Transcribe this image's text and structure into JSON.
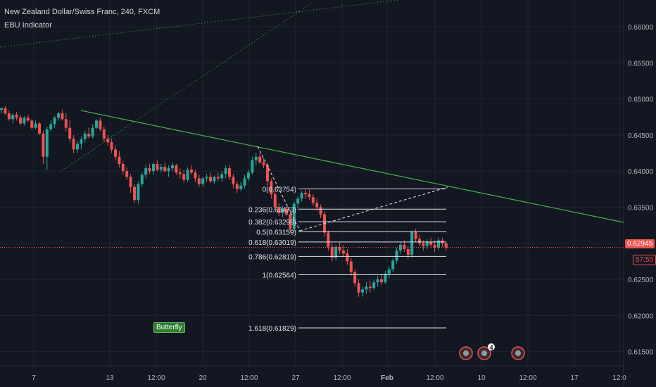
{
  "header": {
    "symbol_title": "New Zealand Dollar/Swiss Franc, 240, FXCM",
    "indicator": "EBU Indicator"
  },
  "price_label": {
    "value": "0.62945",
    "countdown": "57:50",
    "color": "#ef5350"
  },
  "colors": {
    "background": "#131722",
    "grid": "#1f2430",
    "up": "#26a69a",
    "down": "#ef5350",
    "trendline": "#4caf50",
    "fib_line": "#e0e3eb",
    "butterfly_tag": "#2e7d32"
  },
  "chart_data": {
    "type": "candlestick",
    "y_axis": {
      "ticks": [
        "0.66000",
        "0.65500",
        "0.65000",
        "0.64500",
        "0.64000",
        "0.63500",
        "0.63000",
        "0.62500",
        "0.62000",
        "0.61500"
      ],
      "range": [
        0.6125,
        0.6628
      ]
    },
    "x_axis": {
      "ticks": [
        "7",
        "13",
        "12:00",
        "20",
        "12:00",
        "27",
        "12:00",
        "Feb",
        "12:00",
        "10",
        "12:00",
        "17",
        "12:0"
      ]
    },
    "fibonacci": [
      {
        "label": "0(0.63754)",
        "level": 0.63754
      },
      {
        "label": "0.236(0.63473)",
        "level": 0.63473
      },
      {
        "label": "0.382(0.63299)",
        "level": 0.63299
      },
      {
        "label": "0.5(0.63159)",
        "level": 0.63159
      },
      {
        "label": "0.618(0.63019)",
        "level": 0.63019
      },
      {
        "label": "0.786(0.62819)",
        "level": 0.62819
      },
      {
        "label": "1(0.62564)",
        "level": 0.62564
      },
      {
        "label": "1.618(0.61829)",
        "level": 0.61829
      }
    ],
    "pattern_label": "Butterfly",
    "event_badge_count": "4",
    "candles": [
      [
        0.6485,
        0.6488,
        0.648,
        0.6487
      ],
      [
        0.6487,
        0.649,
        0.6478,
        0.648
      ],
      [
        0.648,
        0.6484,
        0.647,
        0.6472
      ],
      [
        0.6472,
        0.648,
        0.6466,
        0.6478
      ],
      [
        0.6478,
        0.6482,
        0.647,
        0.6474
      ],
      [
        0.6474,
        0.6478,
        0.6464,
        0.6466
      ],
      [
        0.6466,
        0.6476,
        0.6463,
        0.6474
      ],
      [
        0.6474,
        0.6478,
        0.6468,
        0.647
      ],
      [
        0.647,
        0.6472,
        0.6458,
        0.646
      ],
      [
        0.646,
        0.647,
        0.6458,
        0.6466
      ],
      [
        0.6466,
        0.6468,
        0.645,
        0.6452
      ],
      [
        0.6452,
        0.6456,
        0.641,
        0.642
      ],
      [
        0.642,
        0.6462,
        0.6402,
        0.6458
      ],
      [
        0.6458,
        0.647,
        0.6455,
        0.6465
      ],
      [
        0.6465,
        0.6476,
        0.646,
        0.6474
      ],
      [
        0.6474,
        0.6482,
        0.647,
        0.648
      ],
      [
        0.648,
        0.6485,
        0.647,
        0.6472
      ],
      [
        0.6472,
        0.648,
        0.6455,
        0.646
      ],
      [
        0.646,
        0.647,
        0.644,
        0.6445
      ],
      [
        0.6445,
        0.645,
        0.6425,
        0.643
      ],
      [
        0.643,
        0.6442,
        0.6425,
        0.6438
      ],
      [
        0.6438,
        0.6448,
        0.643,
        0.6444
      ],
      [
        0.6444,
        0.6456,
        0.644,
        0.6452
      ],
      [
        0.6452,
        0.646,
        0.6445,
        0.6448
      ],
      [
        0.6448,
        0.6465,
        0.6445,
        0.646
      ],
      [
        0.646,
        0.6472,
        0.6458,
        0.647
      ],
      [
        0.647,
        0.6474,
        0.6455,
        0.6458
      ],
      [
        0.6458,
        0.6462,
        0.644,
        0.6445
      ],
      [
        0.6445,
        0.645,
        0.6435,
        0.644
      ],
      [
        0.644,
        0.6445,
        0.6425,
        0.643
      ],
      [
        0.643,
        0.6436,
        0.6415,
        0.642
      ],
      [
        0.642,
        0.6428,
        0.6405,
        0.641
      ],
      [
        0.641,
        0.6414,
        0.6395,
        0.64
      ],
      [
        0.64,
        0.6405,
        0.6388,
        0.6392
      ],
      [
        0.6392,
        0.6396,
        0.637,
        0.6378
      ],
      [
        0.6378,
        0.6382,
        0.6356,
        0.636
      ],
      [
        0.636,
        0.6385,
        0.6355,
        0.6382
      ],
      [
        0.6382,
        0.6398,
        0.6378,
        0.6395
      ],
      [
        0.6395,
        0.6408,
        0.639,
        0.6404
      ],
      [
        0.6404,
        0.641,
        0.6396,
        0.64
      ],
      [
        0.64,
        0.6412,
        0.6395,
        0.641
      ],
      [
        0.641,
        0.6415,
        0.64,
        0.6402
      ],
      [
        0.6402,
        0.641,
        0.6398,
        0.6406
      ],
      [
        0.6406,
        0.6412,
        0.6398,
        0.64
      ],
      [
        0.64,
        0.6408,
        0.6392,
        0.6404
      ],
      [
        0.6404,
        0.6412,
        0.64,
        0.6408
      ],
      [
        0.6408,
        0.641,
        0.6395,
        0.6398
      ],
      [
        0.6398,
        0.6404,
        0.639,
        0.6396
      ],
      [
        0.6396,
        0.6402,
        0.6384,
        0.6388
      ],
      [
        0.6388,
        0.6405,
        0.6385,
        0.6402
      ],
      [
        0.6402,
        0.6408,
        0.6395,
        0.6398
      ],
      [
        0.6398,
        0.6402,
        0.6385,
        0.639
      ],
      [
        0.639,
        0.6395,
        0.6378,
        0.6382
      ],
      [
        0.6382,
        0.6392,
        0.6378,
        0.639
      ],
      [
        0.639,
        0.6396,
        0.6385,
        0.6392
      ],
      [
        0.6392,
        0.6398,
        0.6384,
        0.6386
      ],
      [
        0.6386,
        0.6394,
        0.6382,
        0.6392
      ],
      [
        0.6392,
        0.6398,
        0.6386,
        0.639
      ],
      [
        0.639,
        0.64,
        0.6385,
        0.6396
      ],
      [
        0.6396,
        0.6408,
        0.639,
        0.6404
      ],
      [
        0.6404,
        0.6408,
        0.6388,
        0.6392
      ],
      [
        0.6392,
        0.6396,
        0.6376,
        0.6382
      ],
      [
        0.6382,
        0.6386,
        0.637,
        0.6375
      ],
      [
        0.6375,
        0.6385,
        0.6372,
        0.638
      ],
      [
        0.638,
        0.6395,
        0.6376,
        0.639
      ],
      [
        0.639,
        0.6402,
        0.6386,
        0.6398
      ],
      [
        0.6398,
        0.642,
        0.6395,
        0.6415
      ],
      [
        0.6415,
        0.6425,
        0.6408,
        0.642
      ],
      [
        0.642,
        0.6425,
        0.641,
        0.6412
      ],
      [
        0.6412,
        0.6418,
        0.6404,
        0.6408
      ],
      [
        0.6408,
        0.6412,
        0.638,
        0.6386
      ],
      [
        0.6386,
        0.639,
        0.6362,
        0.6368
      ],
      [
        0.6368,
        0.6372,
        0.6345,
        0.635
      ],
      [
        0.635,
        0.6356,
        0.6338,
        0.6342
      ],
      [
        0.6342,
        0.6352,
        0.6336,
        0.6348
      ],
      [
        0.6348,
        0.6352,
        0.6338,
        0.634
      ],
      [
        0.634,
        0.6346,
        0.6315,
        0.632
      ],
      [
        0.632,
        0.6358,
        0.6316,
        0.6355
      ],
      [
        0.6355,
        0.6365,
        0.6348,
        0.6362
      ],
      [
        0.6362,
        0.6372,
        0.6358,
        0.637
      ],
      [
        0.637,
        0.6374,
        0.6362,
        0.6368
      ],
      [
        0.6368,
        0.6374,
        0.636,
        0.6364
      ],
      [
        0.6364,
        0.6368,
        0.6352,
        0.6356
      ],
      [
        0.6356,
        0.6362,
        0.6345,
        0.635
      ],
      [
        0.635,
        0.6354,
        0.6335,
        0.634
      ],
      [
        0.634,
        0.6344,
        0.631,
        0.6315
      ],
      [
        0.6315,
        0.6318,
        0.629,
        0.6295
      ],
      [
        0.6295,
        0.63,
        0.6275,
        0.628
      ],
      [
        0.628,
        0.6298,
        0.6276,
        0.6295
      ],
      [
        0.6295,
        0.6302,
        0.6285,
        0.629
      ],
      [
        0.629,
        0.6298,
        0.6282,
        0.6286
      ],
      [
        0.6286,
        0.6292,
        0.627,
        0.6275
      ],
      [
        0.6275,
        0.628,
        0.6255,
        0.626
      ],
      [
        0.626,
        0.6264,
        0.624,
        0.6245
      ],
      [
        0.6245,
        0.625,
        0.6226,
        0.6232
      ],
      [
        0.6232,
        0.624,
        0.6226,
        0.6236
      ],
      [
        0.6236,
        0.6246,
        0.623,
        0.624
      ],
      [
        0.624,
        0.6248,
        0.6232,
        0.6238
      ],
      [
        0.6238,
        0.625,
        0.6235,
        0.6246
      ],
      [
        0.6246,
        0.6255,
        0.624,
        0.625
      ],
      [
        0.625,
        0.6258,
        0.6242,
        0.6246
      ],
      [
        0.6246,
        0.6262,
        0.6244,
        0.6258
      ],
      [
        0.6258,
        0.6268,
        0.6252,
        0.6264
      ],
      [
        0.6264,
        0.628,
        0.626,
        0.6276
      ],
      [
        0.6276,
        0.6294,
        0.6272,
        0.629
      ],
      [
        0.629,
        0.6302,
        0.6285,
        0.6298
      ],
      [
        0.6298,
        0.6304,
        0.6288,
        0.6292
      ],
      [
        0.6292,
        0.6296,
        0.6278,
        0.6284
      ],
      [
        0.6284,
        0.6318,
        0.628,
        0.6316
      ],
      [
        0.6316,
        0.632,
        0.6302,
        0.6306
      ],
      [
        0.6306,
        0.6312,
        0.6296,
        0.63
      ],
      [
        0.63,
        0.6304,
        0.629,
        0.6296
      ],
      [
        0.6296,
        0.6306,
        0.6292,
        0.6302
      ],
      [
        0.6302,
        0.6308,
        0.6294,
        0.6298
      ],
      [
        0.6298,
        0.6304,
        0.6288,
        0.6294
      ],
      [
        0.6294,
        0.6308,
        0.629,
        0.6304
      ],
      [
        0.6304,
        0.6308,
        0.6295,
        0.63
      ],
      [
        0.63,
        0.6302,
        0.629,
        0.6294
      ]
    ]
  }
}
